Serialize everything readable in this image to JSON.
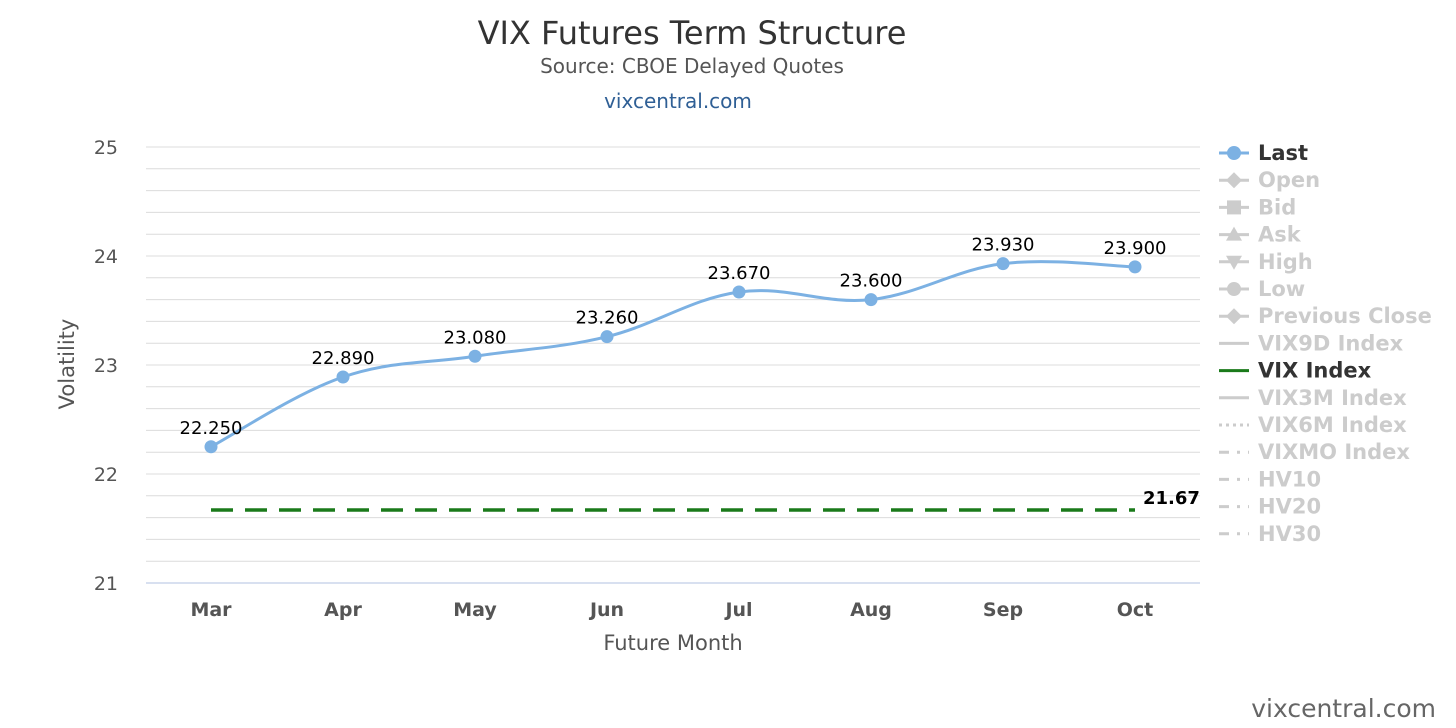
{
  "chart_data": {
    "type": "line",
    "title": "VIX Futures Term Structure",
    "subtitle": "Source: CBOE Delayed Quotes",
    "link_text": "vixcentral.com",
    "credit": "vixcentral.com",
    "xlabel": "Future Month",
    "ylabel": "Volatility",
    "categories": [
      "Mar",
      "Apr",
      "May",
      "Jun",
      "Jul",
      "Aug",
      "Sep",
      "Oct"
    ],
    "ylim": [
      21,
      25
    ],
    "yticks": [
      21,
      22,
      23,
      24,
      25
    ],
    "grid": true,
    "legend_position": "right",
    "series": [
      {
        "name": "Last",
        "values": [
          22.25,
          22.89,
          23.08,
          23.26,
          23.67,
          23.6,
          23.93,
          23.9
        ],
        "labels": [
          "22.250",
          "22.890",
          "23.080",
          "23.260",
          "23.670",
          "23.600",
          "23.930",
          "23.900"
        ],
        "color": "#7cb1e3"
      },
      {
        "name": "VIX Index",
        "values": [
          21.67,
          21.67,
          21.67,
          21.67,
          21.67,
          21.67,
          21.67,
          21.67
        ],
        "end_label": "21.67",
        "color": "#1a7a1a",
        "style": "dashed"
      }
    ],
    "legend": [
      {
        "name": "Last",
        "symbol": "circle",
        "active": true,
        "color": "#7cb1e3"
      },
      {
        "name": "Open",
        "symbol": "diamond",
        "active": false
      },
      {
        "name": "Bid",
        "symbol": "square",
        "active": false
      },
      {
        "name": "Ask",
        "symbol": "triangle",
        "active": false
      },
      {
        "name": "High",
        "symbol": "triangle-down",
        "active": false
      },
      {
        "name": "Low",
        "symbol": "circle",
        "active": false
      },
      {
        "name": "Previous Close",
        "symbol": "diamond",
        "active": false
      },
      {
        "name": "VIX9D Index",
        "symbol": "line",
        "active": false
      },
      {
        "name": "VIX Index",
        "symbol": "line",
        "active": true,
        "color": "#1a7a1a"
      },
      {
        "name": "VIX3M Index",
        "symbol": "line",
        "active": false
      },
      {
        "name": "VIX6M Index",
        "symbol": "dotted",
        "active": false
      },
      {
        "name": "VIXMO Index",
        "symbol": "dashdot",
        "active": false
      },
      {
        "name": "HV10",
        "symbol": "dashdot",
        "active": false
      },
      {
        "name": "HV20",
        "symbol": "dashdot",
        "active": false
      },
      {
        "name": "HV30",
        "symbol": "dashdot",
        "active": false
      }
    ],
    "inactive_color": "#cccccc"
  }
}
